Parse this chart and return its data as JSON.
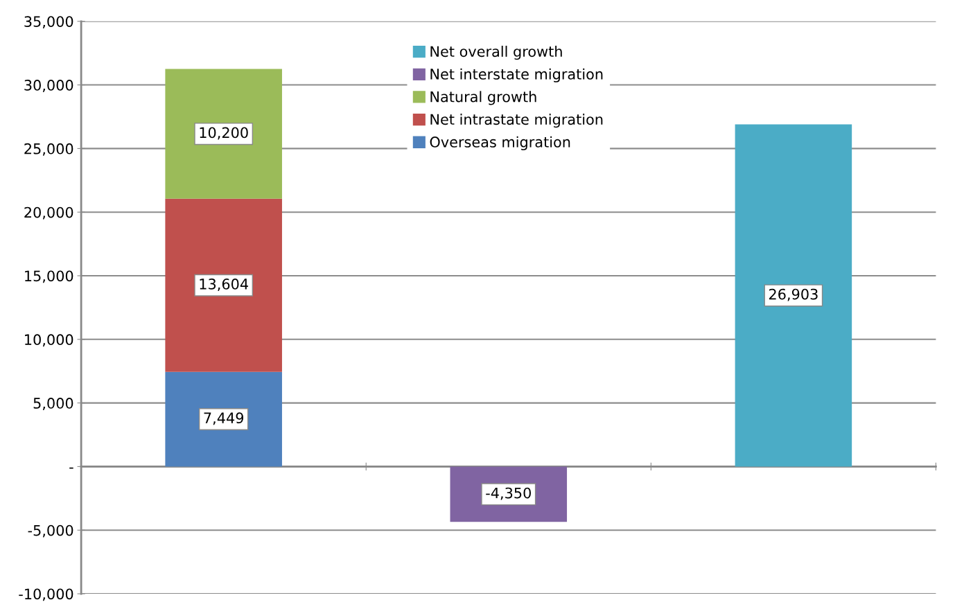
{
  "chart_data": {
    "type": "bar",
    "stacked": true,
    "categories": [
      null,
      null,
      null
    ],
    "series": [
      {
        "name": "Overseas migration",
        "color": "#4f81bd",
        "values": [
          7449,
          null,
          null
        ],
        "value_labels": [
          "7,449",
          null,
          null
        ]
      },
      {
        "name": "Net intrastate migration",
        "color": "#c0504d",
        "values": [
          13604,
          null,
          null
        ],
        "value_labels": [
          "13,604",
          null,
          null
        ]
      },
      {
        "name": "Natural growth",
        "color": "#9bbb59",
        "values": [
          10200,
          null,
          null
        ],
        "value_labels": [
          "10,200",
          null,
          null
        ]
      },
      {
        "name": "Net interstate migration",
        "color": "#8064a2",
        "values": [
          null,
          -4350,
          null
        ],
        "value_labels": [
          null,
          "-4,350",
          null
        ]
      },
      {
        "name": "Net overall growth",
        "color": "#4bacc6",
        "values": [
          null,
          null,
          26903
        ],
        "value_labels": [
          null,
          null,
          "26,903"
        ]
      }
    ],
    "ylim": [
      -10000,
      35000
    ],
    "yticks": [
      {
        "value": -10000,
        "label": "-10,000"
      },
      {
        "value": -5000,
        "label": "-5,000"
      },
      {
        "value": 0,
        "label": "-"
      },
      {
        "value": 5000,
        "label": "5,000"
      },
      {
        "value": 10000,
        "label": "10,000"
      },
      {
        "value": 15000,
        "label": "15,000"
      },
      {
        "value": 20000,
        "label": "20,000"
      },
      {
        "value": 25000,
        "label": "25,000"
      },
      {
        "value": 30000,
        "label": "30,000"
      },
      {
        "value": 35000,
        "label": "35,000"
      }
    ],
    "grid": "y",
    "legend": "top"
  }
}
